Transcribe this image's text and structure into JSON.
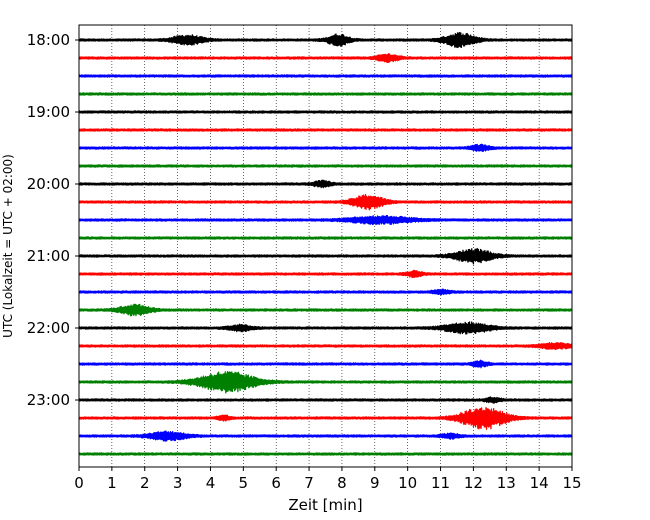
{
  "chart_data": {
    "type": "line",
    "title": "",
    "xlabel": "Zeit  [min]",
    "ylabel": "UTC (Lokalzeit = UTC + 02:00)",
    "xlim": [
      0,
      15
    ],
    "x_ticks": [
      0,
      1,
      2,
      3,
      4,
      5,
      6,
      7,
      8,
      9,
      10,
      11,
      12,
      13,
      14,
      15
    ],
    "x_tick_labels": [
      "0",
      "1",
      "2",
      "3",
      "4",
      "5",
      "6",
      "7",
      "8",
      "9",
      "10",
      "11",
      "12",
      "13",
      "14",
      "15"
    ],
    "y_tick_labels": [
      "18:00",
      "19:00",
      "20:00",
      "21:00",
      "22:00",
      "23:00"
    ],
    "grid": "vertical-dotted",
    "line_colors": [
      "#000000",
      "#ff0000",
      "#0000ff",
      "#008000"
    ],
    "rows": [
      {
        "time": "18:00",
        "color": "#000000",
        "events": [
          {
            "t": 3.3,
            "a": 0.5,
            "w": 0.5
          },
          {
            "t": 7.9,
            "a": 0.6,
            "w": 0.35
          },
          {
            "t": 11.6,
            "a": 0.75,
            "w": 0.5
          }
        ]
      },
      {
        "time": "18:15",
        "color": "#ff0000",
        "events": [
          {
            "t": 9.4,
            "a": 0.4,
            "w": 0.35
          }
        ]
      },
      {
        "time": "18:30",
        "color": "#0000ff",
        "events": []
      },
      {
        "time": "18:45",
        "color": "#008000",
        "events": []
      },
      {
        "time": "19:00",
        "color": "#000000",
        "events": []
      },
      {
        "time": "19:15",
        "color": "#ff0000",
        "events": []
      },
      {
        "time": "19:30",
        "color": "#0000ff",
        "events": [
          {
            "t": 12.2,
            "a": 0.3,
            "w": 0.3
          }
        ]
      },
      {
        "time": "19:45",
        "color": "#008000",
        "events": []
      },
      {
        "time": "20:00",
        "color": "#000000",
        "events": [
          {
            "t": 7.4,
            "a": 0.3,
            "w": 0.3
          }
        ]
      },
      {
        "time": "20:15",
        "color": "#ff0000",
        "events": [
          {
            "t": 8.8,
            "a": 0.75,
            "w": 0.5
          }
        ]
      },
      {
        "time": "20:30",
        "color": "#0000ff",
        "events": [
          {
            "t": 9.2,
            "a": 0.4,
            "w": 1.0
          }
        ]
      },
      {
        "time": "20:45",
        "color": "#008000",
        "events": []
      },
      {
        "time": "21:00",
        "color": "#000000",
        "events": [
          {
            "t": 12.0,
            "a": 0.75,
            "w": 0.6
          }
        ]
      },
      {
        "time": "21:15",
        "color": "#ff0000",
        "events": [
          {
            "t": 10.2,
            "a": 0.3,
            "w": 0.25
          }
        ]
      },
      {
        "time": "21:30",
        "color": "#0000ff",
        "events": [
          {
            "t": 11.0,
            "a": 0.2,
            "w": 0.3
          }
        ]
      },
      {
        "time": "21:45",
        "color": "#008000",
        "events": [
          {
            "t": 1.7,
            "a": 0.55,
            "w": 0.5
          }
        ]
      },
      {
        "time": "22:00",
        "color": "#000000",
        "events": [
          {
            "t": 4.9,
            "a": 0.3,
            "w": 0.4
          },
          {
            "t": 11.8,
            "a": 0.6,
            "w": 0.7
          }
        ]
      },
      {
        "time": "22:15",
        "color": "#ff0000",
        "events": [
          {
            "t": 14.5,
            "a": 0.3,
            "w": 0.5
          }
        ]
      },
      {
        "time": "22:30",
        "color": "#0000ff",
        "events": [
          {
            "t": 12.2,
            "a": 0.3,
            "w": 0.25
          }
        ]
      },
      {
        "time": "22:45",
        "color": "#008000",
        "events": [
          {
            "t": 4.5,
            "a": 1.1,
            "w": 0.9
          }
        ]
      },
      {
        "time": "23:00",
        "color": "#000000",
        "events": [
          {
            "t": 12.6,
            "a": 0.25,
            "w": 0.25
          }
        ]
      },
      {
        "time": "23:15",
        "color": "#ff0000",
        "events": [
          {
            "t": 12.3,
            "a": 1.2,
            "w": 0.7
          },
          {
            "t": 4.4,
            "a": 0.25,
            "w": 0.2
          }
        ]
      },
      {
        "time": "23:30",
        "color": "#0000ff",
        "events": [
          {
            "t": 2.7,
            "a": 0.45,
            "w": 0.6
          },
          {
            "t": 11.3,
            "a": 0.25,
            "w": 0.3
          }
        ]
      },
      {
        "time": "23:45",
        "color": "#008000",
        "events": []
      }
    ]
  }
}
